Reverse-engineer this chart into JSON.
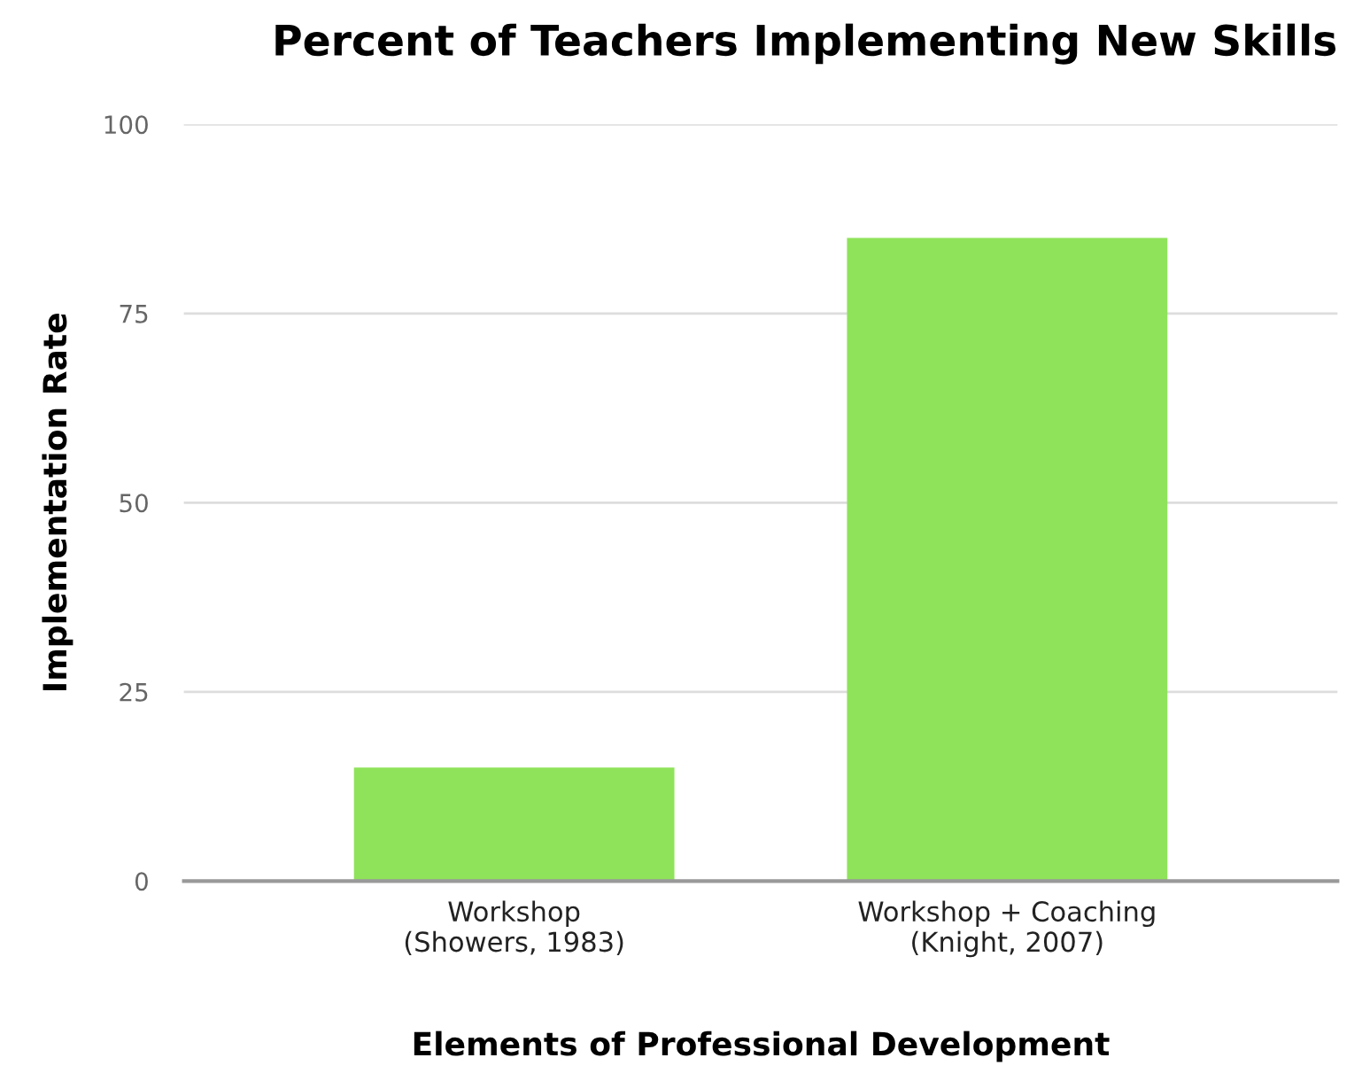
{
  "chart_data": {
    "type": "bar",
    "title": "Percent of Teachers Implementing New Skills",
    "xlabel": "Elements of Professional Development",
    "ylabel": "Implementation Rate",
    "categories": [
      "Workshop\n(Showers, 1983)",
      "Workshop + Coaching\n(Knight, 2007)"
    ],
    "values": [
      15,
      85
    ],
    "color": "#8fe35a",
    "ylim": [
      0,
      100
    ],
    "yticks": [
      0,
      25,
      50,
      75,
      100
    ],
    "grid": "y"
  }
}
